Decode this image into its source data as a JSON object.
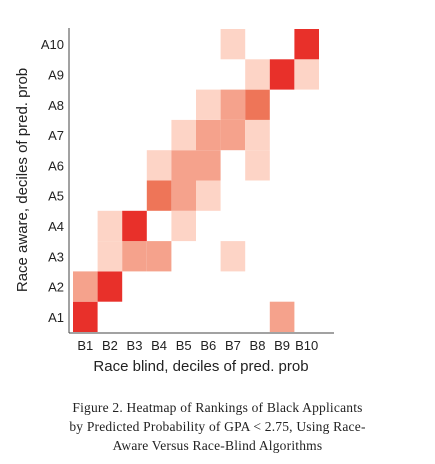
{
  "chart_data": {
    "type": "heatmap",
    "xlabel": "Race blind, deciles of pred. prob",
    "ylabel": "Race aware, deciles of pred. prob",
    "x_categories": [
      "B1",
      "B2",
      "B3",
      "B4",
      "B5",
      "B6",
      "B7",
      "B8",
      "B9",
      "B10"
    ],
    "y_categories": [
      "A1",
      "A2",
      "A3",
      "A4",
      "A5",
      "A6",
      "A7",
      "A8",
      "A9",
      "A10"
    ],
    "intensity_scale": [
      0,
      4
    ],
    "colors": [
      "#ffffff",
      "#fdd4c6",
      "#f5a28c",
      "#ee7558",
      "#e8302a"
    ],
    "cells": [
      {
        "x": "B1",
        "y": "A1",
        "value": 4
      },
      {
        "x": "B9",
        "y": "A1",
        "value": 2
      },
      {
        "x": "B1",
        "y": "A2",
        "value": 2
      },
      {
        "x": "B2",
        "y": "A2",
        "value": 4
      },
      {
        "x": "B2",
        "y": "A3",
        "value": 1
      },
      {
        "x": "B3",
        "y": "A3",
        "value": 2
      },
      {
        "x": "B4",
        "y": "A3",
        "value": 2
      },
      {
        "x": "B7",
        "y": "A3",
        "value": 1
      },
      {
        "x": "B2",
        "y": "A4",
        "value": 1
      },
      {
        "x": "B3",
        "y": "A4",
        "value": 4
      },
      {
        "x": "B5",
        "y": "A4",
        "value": 1
      },
      {
        "x": "B4",
        "y": "A5",
        "value": 3
      },
      {
        "x": "B5",
        "y": "A5",
        "value": 2
      },
      {
        "x": "B6",
        "y": "A5",
        "value": 1
      },
      {
        "x": "B4",
        "y": "A6",
        "value": 1
      },
      {
        "x": "B5",
        "y": "A6",
        "value": 2
      },
      {
        "x": "B6",
        "y": "A6",
        "value": 2
      },
      {
        "x": "B8",
        "y": "A6",
        "value": 1
      },
      {
        "x": "B5",
        "y": "A7",
        "value": 1
      },
      {
        "x": "B6",
        "y": "A7",
        "value": 2
      },
      {
        "x": "B7",
        "y": "A7",
        "value": 2
      },
      {
        "x": "B8",
        "y": "A7",
        "value": 1
      },
      {
        "x": "B6",
        "y": "A8",
        "value": 1
      },
      {
        "x": "B7",
        "y": "A8",
        "value": 2
      },
      {
        "x": "B8",
        "y": "A8",
        "value": 3
      },
      {
        "x": "B8",
        "y": "A9",
        "value": 1
      },
      {
        "x": "B9",
        "y": "A9",
        "value": 4
      },
      {
        "x": "B10",
        "y": "A9",
        "value": 1
      },
      {
        "x": "B7",
        "y": "A10",
        "value": 1
      },
      {
        "x": "B10",
        "y": "A10",
        "value": 4
      }
    ]
  },
  "caption": {
    "line1": "Figure 2. Heatmap of Rankings of Black Applicants",
    "line2": "by Predicted Probability of GPA < 2.75, Using Race-",
    "line3": "Aware Versus Race-Blind Algorithms"
  }
}
